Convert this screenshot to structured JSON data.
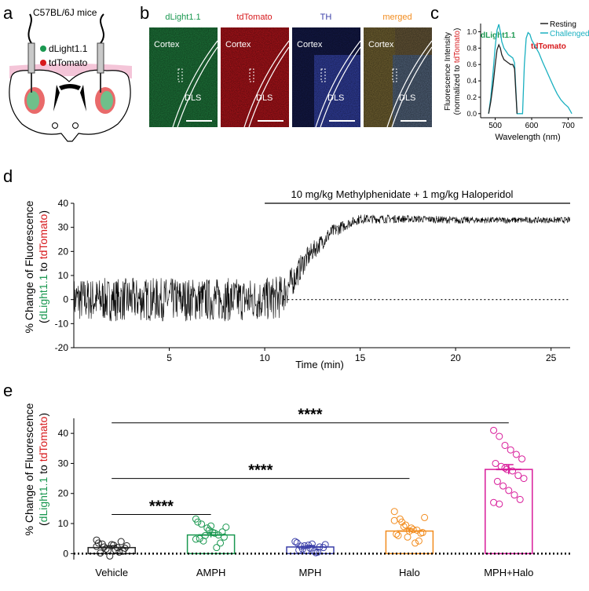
{
  "figure": {
    "panel_labels": [
      "a",
      "b",
      "c",
      "d",
      "e"
    ]
  },
  "panel_a": {
    "title": "C57BL/6J mice",
    "legend": [
      {
        "label": "dLight1.1",
        "color": "#1a9850"
      },
      {
        "label": "tdTomato",
        "color": "#d7191c"
      }
    ]
  },
  "panel_b": {
    "images": [
      {
        "channel": "dLight1.1",
        "color": "#1a9850",
        "tint": "#1f7a3c",
        "cortex": "Cortex",
        "region": "DLS"
      },
      {
        "channel": "tdTomato",
        "color": "#d7191c",
        "tint": "#b3141b",
        "cortex": "Cortex",
        "region": "DLS"
      },
      {
        "channel": "TH",
        "color": "#3b3fa8",
        "tint": "#24308f",
        "cortex": "Cortex",
        "region": "DLS"
      },
      {
        "channel": "merged",
        "color": "#f28c1e",
        "tint": "#5a6b55",
        "cortex": "Cortex",
        "region": "DLS"
      }
    ]
  },
  "chart_data": [
    {
      "id": "c",
      "type": "line",
      "title": "",
      "xlabel": "Wavelength (nm)",
      "ylabel": "Fluorescence Intensity",
      "ylabel2_parts": [
        "(normalized to ",
        "tdTomato",
        ")"
      ],
      "xlim": [
        460,
        740
      ],
      "ylim": [
        -0.05,
        1.1
      ],
      "xticks": [
        500,
        600,
        700
      ],
      "yticks": [
        0.0,
        0.2,
        0.4,
        0.6,
        0.8,
        1.0
      ],
      "annotations": [
        {
          "text": "dLight1.1",
          "color": "#1a9850"
        },
        {
          "text": "tdTomato",
          "color": "#d7191c"
        }
      ],
      "series": [
        {
          "name": "Resting",
          "color": "#222222",
          "x": [
            482,
            488,
            494,
            500,
            505,
            510,
            514,
            518,
            524,
            530,
            536,
            542,
            548,
            553,
            556,
            560
          ],
          "y": [
            0.0,
            0.15,
            0.35,
            0.6,
            0.78,
            0.84,
            0.8,
            0.72,
            0.66,
            0.64,
            0.62,
            0.6,
            0.6,
            0.55,
            0.3,
            0.0
          ]
        },
        {
          "name": "Challenged",
          "color": "#1ab0c0",
          "x": [
            482,
            488,
            494,
            500,
            505,
            510,
            514,
            518,
            524,
            530,
            536,
            542,
            548,
            553,
            556,
            560,
            575,
            580,
            585,
            590,
            595,
            600,
            610,
            620,
            630,
            640,
            650,
            660,
            670,
            680,
            690,
            700,
            705,
            710
          ],
          "y": [
            0.0,
            0.2,
            0.5,
            0.82,
            1.02,
            1.09,
            1.0,
            0.88,
            0.8,
            0.76,
            0.72,
            0.7,
            0.68,
            0.62,
            0.35,
            0.0,
            0.0,
            0.6,
            0.92,
            0.99,
            0.97,
            0.9,
            0.82,
            0.74,
            0.63,
            0.53,
            0.43,
            0.33,
            0.24,
            0.17,
            0.12,
            0.08,
            0.04,
            0.0
          ]
        }
      ]
    },
    {
      "id": "d",
      "type": "line",
      "title": "10 mg/kg Methylphenidate + 1 mg/kg Haloperidol",
      "xlabel": "Time (min)",
      "ylabel": "% Change of Fluorescence",
      "ylabel2_parts": [
        "(",
        "dLight1.1",
        " to ",
        "tdTomato",
        ")"
      ],
      "xlim": [
        0,
        26
      ],
      "ylim": [
        -20,
        40
      ],
      "xticks": [
        5,
        10,
        15,
        20,
        25
      ],
      "yticks": [
        -20,
        -10,
        0,
        10,
        20,
        30,
        40
      ],
      "treatment_start": 10,
      "treatment_end": 26,
      "baseline": 0,
      "series": [
        {
          "name": "trace",
          "color": "#000000",
          "x": [
            0,
            5,
            10,
            10.8,
            11.5,
            12,
            12.5,
            13,
            13.5,
            14,
            14.5,
            15,
            16,
            18,
            20,
            22,
            24,
            26
          ],
          "y": [
            0,
            0,
            0,
            1,
            8,
            15,
            20,
            24,
            28,
            30,
            32,
            33.5,
            33.5,
            33.5,
            33,
            33,
            33,
            33
          ],
          "noise": [
            9,
            9,
            9,
            9,
            6,
            5,
            4,
            3.5,
            3,
            2.5,
            2,
            2,
            1.8,
            1.5,
            1.5,
            1.3,
            1.3,
            1.3
          ]
        }
      ]
    },
    {
      "id": "e",
      "type": "bar",
      "title": "",
      "xlabel": "",
      "ylabel": "% Change of Fluorescence",
      "ylabel2_parts": [
        "(",
        "dLight1.1",
        " to ",
        "tdTomato",
        ")"
      ],
      "ylim": [
        -2,
        45
      ],
      "yticks": [
        0,
        10,
        20,
        30,
        40
      ],
      "categories": [
        "Vehicle",
        "AMPH",
        "MPH",
        "Halo",
        "MPH+Halo"
      ],
      "values": [
        2.0,
        6.2,
        2.2,
        7.5,
        28.0
      ],
      "sem": [
        0.6,
        0.8,
        0.5,
        0.7,
        1.6
      ],
      "colors": [
        "#222222",
        "#1a9850",
        "#3b3fa8",
        "#f28c1e",
        "#d81b9a"
      ],
      "points": [
        [
          4.5,
          3.2,
          1.0,
          2.8,
          0.5,
          1.8,
          3.5,
          2.2,
          -0.8,
          1.2,
          4.0,
          2.6,
          0.2,
          1.5,
          3.0,
          2.0,
          0.8,
          2.4
        ],
        [
          11.5,
          9.8,
          8.5,
          7.0,
          6.2,
          5.5,
          10.5,
          4.2,
          7.8,
          6.8,
          3.5,
          8.8,
          5.0,
          6.0,
          9.2,
          2.0,
          7.2,
          4.8
        ],
        [
          4.0,
          2.5,
          1.0,
          3.2,
          0.5,
          2.0,
          3.6,
          1.5,
          2.8,
          0.8,
          2.2,
          3.0,
          1.2,
          2.6,
          1.8,
          0.3
        ],
        [
          14.0,
          11.5,
          9.5,
          8.5,
          7.8,
          7.0,
          6.5,
          10.5,
          5.5,
          8.0,
          4.2,
          12.0,
          6.0,
          9.0,
          7.5,
          3.5,
          6.8,
          11.0
        ],
        [
          41.0,
          39.0,
          36.0,
          34.5,
          33.0,
          31.5,
          30.0,
          29.0,
          28.0,
          27.5,
          26.0,
          25.0,
          24.0,
          22.5,
          21.0,
          19.5,
          18.0,
          17.0,
          16.5,
          28.5
        ]
      ],
      "comparisons": [
        {
          "from": 0,
          "to": 1,
          "label": "****"
        },
        {
          "from": 0,
          "to": 3,
          "label": "****"
        },
        {
          "from": 0,
          "to": 4,
          "label": "****"
        }
      ]
    }
  ]
}
